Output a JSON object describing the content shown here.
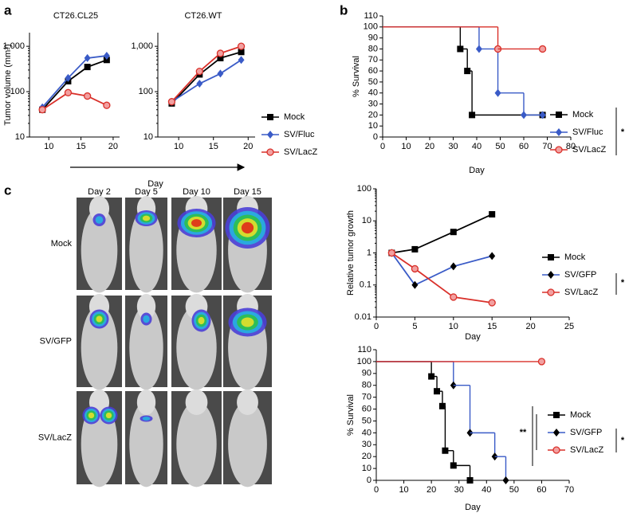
{
  "panels": [
    "a",
    "b",
    "c"
  ],
  "imaging": {
    "columns": [
      "Day 2",
      "Day 5",
      "Day 10",
      "Day 15"
    ],
    "rows": [
      "Mock",
      "SV/GFP",
      "SV/LacZ"
    ]
  },
  "chart_data": [
    {
      "type": "line",
      "title": "CT26.CL25",
      "ylabel": "Tumor volume (mm³)",
      "xlabel": "Day",
      "ylog": true,
      "xlim": [
        7,
        21
      ],
      "xticks": [
        10,
        15,
        20
      ],
      "ylim": [
        10,
        2000
      ],
      "yticks": [
        10,
        100,
        {
          "value": 1000,
          "label": "1,000"
        }
      ],
      "x": [
        9,
        13,
        16,
        19
      ],
      "series": [
        {
          "color": "#000000",
          "marker": "square",
          "values": [
            40,
            170,
            350,
            500
          ]
        },
        {
          "color": "#3a5bc7",
          "marker": "diamond",
          "values": [
            45,
            200,
            550,
            620
          ]
        },
        {
          "color": "#d9302a",
          "marker": "circle",
          "values": [
            40,
            95,
            80,
            50
          ]
        }
      ]
    },
    {
      "type": "line",
      "title": "CT26.WT",
      "ylog": true,
      "xlim": [
        7,
        21
      ],
      "xticks": [
        10,
        15,
        20
      ],
      "ylim": [
        10,
        2000
      ],
      "yticks": [
        10,
        100,
        {
          "value": 1000,
          "label": "1,000"
        }
      ],
      "x": [
        9,
        13,
        16,
        19
      ],
      "series": [
        {
          "name": "Mock",
          "color": "#000000",
          "marker": "square",
          "values": [
            55,
            240,
            550,
            750
          ]
        },
        {
          "name": "SV/Fluc",
          "color": "#3a5bc7",
          "marker": "diamond",
          "values": [
            60,
            150,
            250,
            500
          ]
        },
        {
          "name": "SV/LacZ",
          "color": "#d9302a",
          "marker": "circle",
          "values": [
            60,
            280,
            700,
            1000
          ]
        }
      ]
    },
    {
      "type": "step",
      "ylabel": "% Survival",
      "xlabel": "Day",
      "xlim": [
        0,
        80
      ],
      "xticks": [
        0,
        10,
        20,
        30,
        40,
        50,
        60,
        70,
        80
      ],
      "ylim": [
        0,
        110
      ],
      "yticks": [
        0,
        10,
        20,
        30,
        40,
        50,
        60,
        70,
        80,
        90,
        100,
        110
      ],
      "annotations": [
        "*"
      ],
      "series": [
        {
          "name": "Mock",
          "color": "#000000",
          "marker": "square",
          "x": [
            0,
            33,
            36,
            38,
            68
          ],
          "values": [
            100,
            80,
            60,
            20,
            20
          ]
        },
        {
          "name": "SV/Fluc",
          "color": "#3a5bc7",
          "marker": "diamond",
          "x": [
            0,
            41,
            49,
            60,
            68
          ],
          "values": [
            100,
            80,
            40,
            20,
            20
          ]
        },
        {
          "name": "SV/LacZ",
          "color": "#d9302a",
          "marker": "circle",
          "x": [
            0,
            49,
            68
          ],
          "values": [
            100,
            80,
            80
          ]
        }
      ]
    },
    {
      "type": "line",
      "ylabel": "Relative tumor growth",
      "xlabel": "Day",
      "ylog": true,
      "xlim": [
        0,
        25
      ],
      "xticks": [
        0,
        5,
        10,
        15,
        20,
        25
      ],
      "ylim": [
        0.01,
        100
      ],
      "yticks": [
        0.01,
        0.1,
        1,
        10,
        100
      ],
      "annotations": [
        "*"
      ],
      "x": [
        2,
        5,
        10,
        15
      ],
      "series": [
        {
          "name": "Mock",
          "color": "#000000",
          "marker": "square",
          "values": [
            1,
            1.3,
            4.5,
            16
          ]
        },
        {
          "name": "SV/GFP",
          "color": "#3a5bc7",
          "marker_color": "#000000",
          "marker": "diamond",
          "values": [
            1,
            0.1,
            0.38,
            0.8
          ]
        },
        {
          "name": "SV/LacZ",
          "color": "#d9302a",
          "marker": "circle",
          "values": [
            1,
            0.32,
            0.042,
            0.028
          ]
        }
      ]
    },
    {
      "type": "step",
      "ylabel": "% Survival",
      "xlabel": "Day",
      "xlim": [
        0,
        70
      ],
      "xticks": [
        0,
        10,
        20,
        30,
        40,
        50,
        60,
        70
      ],
      "ylim": [
        0,
        110
      ],
      "yticks": [
        0,
        10,
        20,
        30,
        40,
        50,
        60,
        70,
        80,
        90,
        100,
        110
      ],
      "annotations": [
        "**",
        "*"
      ],
      "series": [
        {
          "name": "Mock",
          "color": "#000000",
          "marker": "square",
          "x": [
            0,
            20,
            22,
            24,
            25,
            28,
            34
          ],
          "values": [
            100,
            87.5,
            75,
            62.5,
            25,
            12.5,
            0
          ]
        },
        {
          "name": "SV/GFP",
          "color": "#3a5bc7",
          "marker_color": "#000000",
          "marker": "diamond",
          "x": [
            0,
            28,
            34,
            43,
            47
          ],
          "values": [
            100,
            80,
            40,
            20,
            0
          ]
        },
        {
          "name": "SV/LacZ",
          "color": "#d9302a",
          "marker": "circle",
          "x": [
            0,
            60
          ],
          "values": [
            100,
            100
          ]
        }
      ]
    }
  ]
}
